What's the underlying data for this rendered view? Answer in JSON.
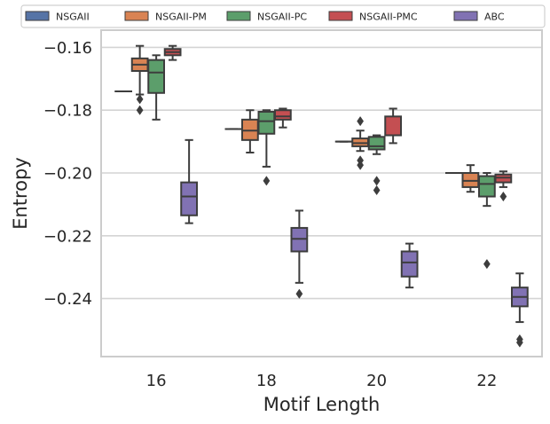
{
  "chart_data": {
    "type": "boxplot",
    "xlabel": "Motif Length",
    "ylabel": "Entropy",
    "categories": [
      "16",
      "18",
      "20",
      "22"
    ],
    "yticks": [
      -0.16,
      -0.18,
      -0.2,
      -0.22,
      -0.24
    ],
    "ytick_labels": [
      "−0.16",
      "−0.18",
      "−0.20",
      "−0.22",
      "−0.24"
    ],
    "ylim": [
      -0.2585,
      -0.1545
    ],
    "grid": "horizontal",
    "legend_position": "top",
    "series": [
      {
        "name": "NSGAII",
        "color": "#5674a6",
        "boxes": [
          {
            "q1": -0.174,
            "median": -0.174,
            "q3": -0.174,
            "whislo": -0.174,
            "whishi": -0.174,
            "fliers": []
          },
          {
            "q1": -0.186,
            "median": -0.186,
            "q3": -0.186,
            "whislo": -0.186,
            "whishi": -0.186,
            "fliers": []
          },
          {
            "q1": -0.19,
            "median": -0.19,
            "q3": -0.19,
            "whislo": -0.19,
            "whishi": -0.19,
            "fliers": []
          },
          {
            "q1": -0.2,
            "median": -0.2,
            "q3": -0.2,
            "whislo": -0.2,
            "whishi": -0.2,
            "fliers": []
          }
        ]
      },
      {
        "name": "NSGAII-PM",
        "color": "#d98353",
        "boxes": [
          {
            "q1": -0.1675,
            "median": -0.1655,
            "q3": -0.1635,
            "whislo": -0.175,
            "whishi": -0.1595,
            "fliers": [
              -0.1765,
              -0.18
            ]
          },
          {
            "q1": -0.1895,
            "median": -0.1865,
            "q3": -0.183,
            "whislo": -0.1935,
            "whishi": -0.18,
            "fliers": []
          },
          {
            "q1": -0.1915,
            "median": -0.1905,
            "q3": -0.189,
            "whislo": -0.193,
            "whishi": -0.1865,
            "fliers": [
              -0.1835,
              -0.196,
              -0.1975
            ]
          },
          {
            "q1": -0.2045,
            "median": -0.2025,
            "q3": -0.2,
            "whislo": -0.206,
            "whishi": -0.1975,
            "fliers": []
          }
        ]
      },
      {
        "name": "NSGAII-PC",
        "color": "#5c9e6b",
        "boxes": [
          {
            "q1": -0.1745,
            "median": -0.168,
            "q3": -0.164,
            "whislo": -0.183,
            "whishi": -0.1625,
            "fliers": []
          },
          {
            "q1": -0.1875,
            "median": -0.1835,
            "q3": -0.1805,
            "whislo": -0.198,
            "whishi": -0.18,
            "fliers": [
              -0.2025
            ]
          },
          {
            "q1": -0.1925,
            "median": -0.1915,
            "q3": -0.1885,
            "whislo": -0.194,
            "whishi": -0.188,
            "fliers": [
              -0.2025,
              -0.2055
            ]
          },
          {
            "q1": -0.2075,
            "median": -0.2035,
            "q3": -0.201,
            "whislo": -0.2105,
            "whishi": -0.2,
            "fliers": [
              -0.229
            ]
          }
        ]
      },
      {
        "name": "NSGAII-PMC",
        "color": "#c44f52",
        "boxes": [
          {
            "q1": -0.1625,
            "median": -0.1615,
            "q3": -0.1605,
            "whislo": -0.164,
            "whishi": -0.1595,
            "fliers": []
          },
          {
            "q1": -0.183,
            "median": -0.182,
            "q3": -0.18,
            "whislo": -0.1855,
            "whishi": -0.1795,
            "fliers": []
          },
          {
            "q1": -0.188,
            "median": -0.188,
            "q3": -0.182,
            "whislo": -0.1905,
            "whishi": -0.1795,
            "fliers": []
          },
          {
            "q1": -0.203,
            "median": -0.2015,
            "q3": -0.2005,
            "whislo": -0.2045,
            "whishi": -0.1995,
            "fliers": [
              -0.2075
            ]
          }
        ]
      },
      {
        "name": "ABC",
        "color": "#8172b3",
        "boxes": [
          {
            "q1": -0.2135,
            "median": -0.2075,
            "q3": -0.203,
            "whislo": -0.216,
            "whishi": -0.1895,
            "fliers": []
          },
          {
            "q1": -0.225,
            "median": -0.221,
            "q3": -0.2175,
            "whislo": -0.235,
            "whishi": -0.212,
            "fliers": [
              -0.2385
            ]
          },
          {
            "q1": -0.233,
            "median": -0.2285,
            "q3": -0.225,
            "whislo": -0.2365,
            "whishi": -0.2225,
            "fliers": []
          },
          {
            "q1": -0.2425,
            "median": -0.2395,
            "q3": -0.2365,
            "whislo": -0.2475,
            "whishi": -0.232,
            "fliers": [
              -0.253,
              -0.254
            ]
          }
        ]
      }
    ]
  }
}
